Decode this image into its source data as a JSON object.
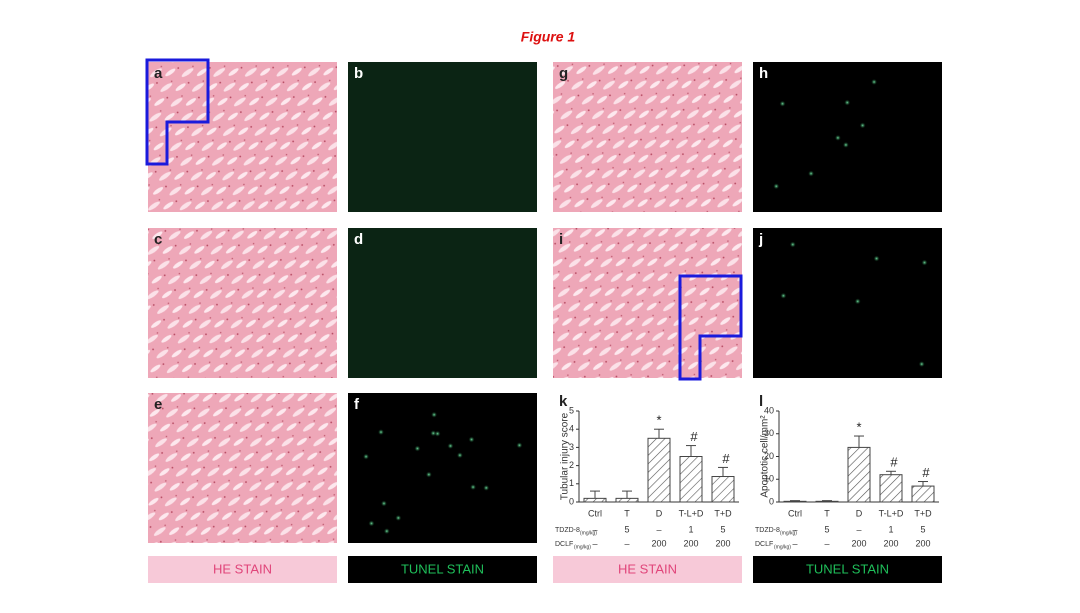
{
  "title": "Figure 1",
  "panels": [
    "a",
    "b",
    "g",
    "h",
    "c",
    "d",
    "i",
    "j",
    "e",
    "f"
  ],
  "stain_labels": [
    "HE STAIN",
    "TUNEL STAIN",
    "HE STAIN",
    "TUNEL STAIN"
  ],
  "chart_data": [
    {
      "type": "bar",
      "panel_label": "k",
      "y_label": "Tubular injury score",
      "categories": [
        "Ctrl",
        "T",
        "D",
        "T-L+D",
        "T+D"
      ],
      "values": [
        0.2,
        0.2,
        3.5,
        2.5,
        1.4
      ],
      "errors": [
        0.4,
        0.4,
        0.5,
        0.6,
        0.5
      ],
      "annotations": [
        null,
        null,
        "*",
        "#",
        "#"
      ],
      "ylim": [
        0,
        5
      ],
      "yticks": [
        0,
        1,
        2,
        3,
        4,
        5
      ],
      "dose_rows": [
        {
          "label": "TDZD-8",
          "unit": "(mg/kg)",
          "values": [
            "–",
            "5",
            "–",
            "1",
            "5"
          ]
        },
        {
          "label": "DCLF",
          "unit": "(mg/kg)",
          "values": [
            "–",
            "–",
            "200",
            "200",
            "200"
          ]
        }
      ]
    },
    {
      "type": "bar",
      "panel_label": "l",
      "y_label": "Apoptotic cell/mm²",
      "categories": [
        "Ctrl",
        "T",
        "D",
        "T-L+D",
        "T+D"
      ],
      "values": [
        0.3,
        0.3,
        24,
        12,
        7
      ],
      "errors": [
        0.3,
        0.3,
        5,
        1.5,
        2
      ],
      "annotations": [
        null,
        null,
        "*",
        "#",
        "#"
      ],
      "ylim": [
        0,
        40
      ],
      "yticks": [
        0,
        10,
        20,
        30,
        40
      ],
      "dose_rows": [
        {
          "label": "TDZD-8",
          "unit": "(mg/kg)",
          "values": [
            "–",
            "5",
            "–",
            "1",
            "5"
          ]
        },
        {
          "label": "DCLF",
          "unit": "(mg/kg)",
          "values": [
            "–",
            "–",
            "200",
            "200",
            "200"
          ]
        }
      ]
    }
  ]
}
